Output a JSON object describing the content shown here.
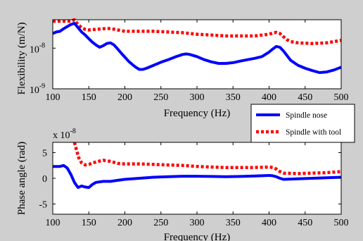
{
  "chart_data": [
    {
      "type": "line",
      "xlabel": "Frequency (Hz)",
      "ylabel": "Flexibility (m/N)",
      "xlim": [
        100,
        500
      ],
      "yscale": "log",
      "ylim": [
        1e-09,
        5e-08
      ],
      "xticks": [
        "100",
        "150",
        "200",
        "250",
        "300",
        "350",
        "400",
        "450",
        "500"
      ],
      "yticks": [
        {
          "base": "10",
          "exp": "-8",
          "value": 1e-08
        },
        {
          "base": "10",
          "exp": "-9",
          "value": 1e-09
        }
      ],
      "grid": false,
      "series": [
        {
          "name": "Spindle nose",
          "color": "#0000ff",
          "style": "solid",
          "x": [
            100,
            105,
            110,
            115,
            120,
            125,
            130,
            135,
            140,
            145,
            150,
            155,
            160,
            165,
            170,
            175,
            180,
            185,
            190,
            195,
            200,
            205,
            210,
            215,
            220,
            225,
            230,
            240,
            250,
            260,
            270,
            280,
            285,
            290,
            300,
            310,
            320,
            330,
            340,
            350,
            360,
            370,
            380,
            390,
            400,
            405,
            410,
            415,
            420,
            425,
            430,
            440,
            450,
            460,
            470,
            480,
            490,
            500
          ],
          "values": [
            2.3e-08,
            2.5e-08,
            2.6e-08,
            3e-08,
            3.4e-08,
            3.8e-08,
            4.1e-08,
            3.2e-08,
            2.5e-08,
            2.1e-08,
            1.7e-08,
            1.4e-08,
            1.2e-08,
            1.05e-08,
            1.15e-08,
            1.3e-08,
            1.35e-08,
            1.2e-08,
            9.5e-09,
            7.5e-09,
            6e-09,
            4.8e-09,
            4e-09,
            3.4e-09,
            3e-09,
            3e-09,
            3.2e-09,
            3.8e-09,
            4.5e-09,
            5.2e-09,
            6.1e-09,
            7e-09,
            7.2e-09,
            7e-09,
            6.2e-09,
            5.2e-09,
            4.6e-09,
            4.2e-09,
            4.2e-09,
            4.4e-09,
            4.8e-09,
            5.2e-09,
            5.6e-09,
            6.2e-09,
            8e-09,
            9.5e-09,
            1.1e-08,
            1.05e-08,
            8.5e-09,
            6.5e-09,
            5e-09,
            3.8e-09,
            3.2e-09,
            2.8e-09,
            2.5e-09,
            2.6e-09,
            2.9e-09,
            3.4e-09
          ]
        },
        {
          "name": "Spindle with tool",
          "color": "#ff0000",
          "style": "dotted",
          "x": [
            100,
            105,
            110,
            115,
            120,
            125,
            130,
            135,
            140,
            145,
            150,
            160,
            170,
            180,
            190,
            200,
            220,
            240,
            260,
            280,
            300,
            320,
            340,
            360,
            380,
            400,
            405,
            410,
            415,
            420,
            425,
            430,
            440,
            460,
            480,
            500
          ],
          "values": [
            4.6e-08,
            4.6e-08,
            4.6e-08,
            4.6e-08,
            4.6e-08,
            4.6e-08,
            5.5e-08,
            3.8e-08,
            3.2e-08,
            2.9e-08,
            2.8e-08,
            2.9e-08,
            3e-08,
            3.05e-08,
            2.8e-08,
            2.6e-08,
            2.6e-08,
            2.6e-08,
            2.5e-08,
            2.4e-08,
            2.2e-08,
            2.1e-08,
            2e-08,
            2e-08,
            2e-08,
            2.2e-08,
            2.35e-08,
            2.45e-08,
            2.3e-08,
            1.9e-08,
            1.6e-08,
            1.45e-08,
            1.35e-08,
            1.3e-08,
            1.35e-08,
            1.55e-08
          ]
        }
      ]
    },
    {
      "type": "line",
      "xlabel": "Frequency (Hz)",
      "ylabel": "Phase angle (rad)",
      "yscale_note": "x 10-8",
      "xlim": [
        100,
        500
      ],
      "ylim": [
        -7,
        7
      ],
      "xticks": [
        "100",
        "150",
        "200",
        "250",
        "300",
        "350",
        "400",
        "450",
        "500"
      ],
      "yticks": [
        "5",
        "0",
        "-5"
      ],
      "grid": false,
      "series": [
        {
          "name": "Spindle nose",
          "color": "#0000ff",
          "style": "solid",
          "x": [
            100,
            105,
            110,
            115,
            120,
            125,
            130,
            135,
            140,
            145,
            150,
            155,
            160,
            170,
            180,
            190,
            200,
            220,
            240,
            260,
            280,
            300,
            320,
            340,
            360,
            380,
            400,
            405,
            410,
            415,
            420,
            440,
            460,
            480,
            500
          ],
          "values": [
            2.3,
            2.3,
            2.3,
            2.5,
            2.0,
            0.8,
            -0.8,
            -1.8,
            -1.5,
            -1.7,
            -1.8,
            -1.2,
            -0.8,
            -0.6,
            -0.6,
            -0.4,
            -0.2,
            0.0,
            0.2,
            0.3,
            0.4,
            0.4,
            0.35,
            0.3,
            0.35,
            0.45,
            0.55,
            0.5,
            0.3,
            0.0,
            -0.2,
            -0.1,
            0.0,
            0.1,
            0.2
          ]
        },
        {
          "name": "Spindle with tool",
          "color": "#ff0000",
          "style": "dotted",
          "x": [
            130,
            133,
            136,
            140,
            145,
            150,
            160,
            170,
            180,
            190,
            200,
            220,
            240,
            260,
            280,
            300,
            320,
            340,
            360,
            380,
            400,
            405,
            410,
            415,
            420,
            440,
            460,
            480,
            500
          ],
          "values": [
            7.0,
            5.5,
            4.0,
            3.0,
            2.6,
            2.7,
            3.2,
            3.5,
            3.3,
            2.9,
            2.8,
            2.8,
            2.7,
            2.6,
            2.5,
            2.3,
            2.2,
            2.1,
            2.1,
            2.1,
            2.2,
            2.1,
            1.8,
            1.3,
            1.0,
            0.9,
            1.0,
            1.1,
            1.3
          ]
        }
      ]
    }
  ],
  "legend": {
    "placement": "right, between panels",
    "entries": [
      "Spindle nose",
      "Spindle with tool"
    ]
  }
}
